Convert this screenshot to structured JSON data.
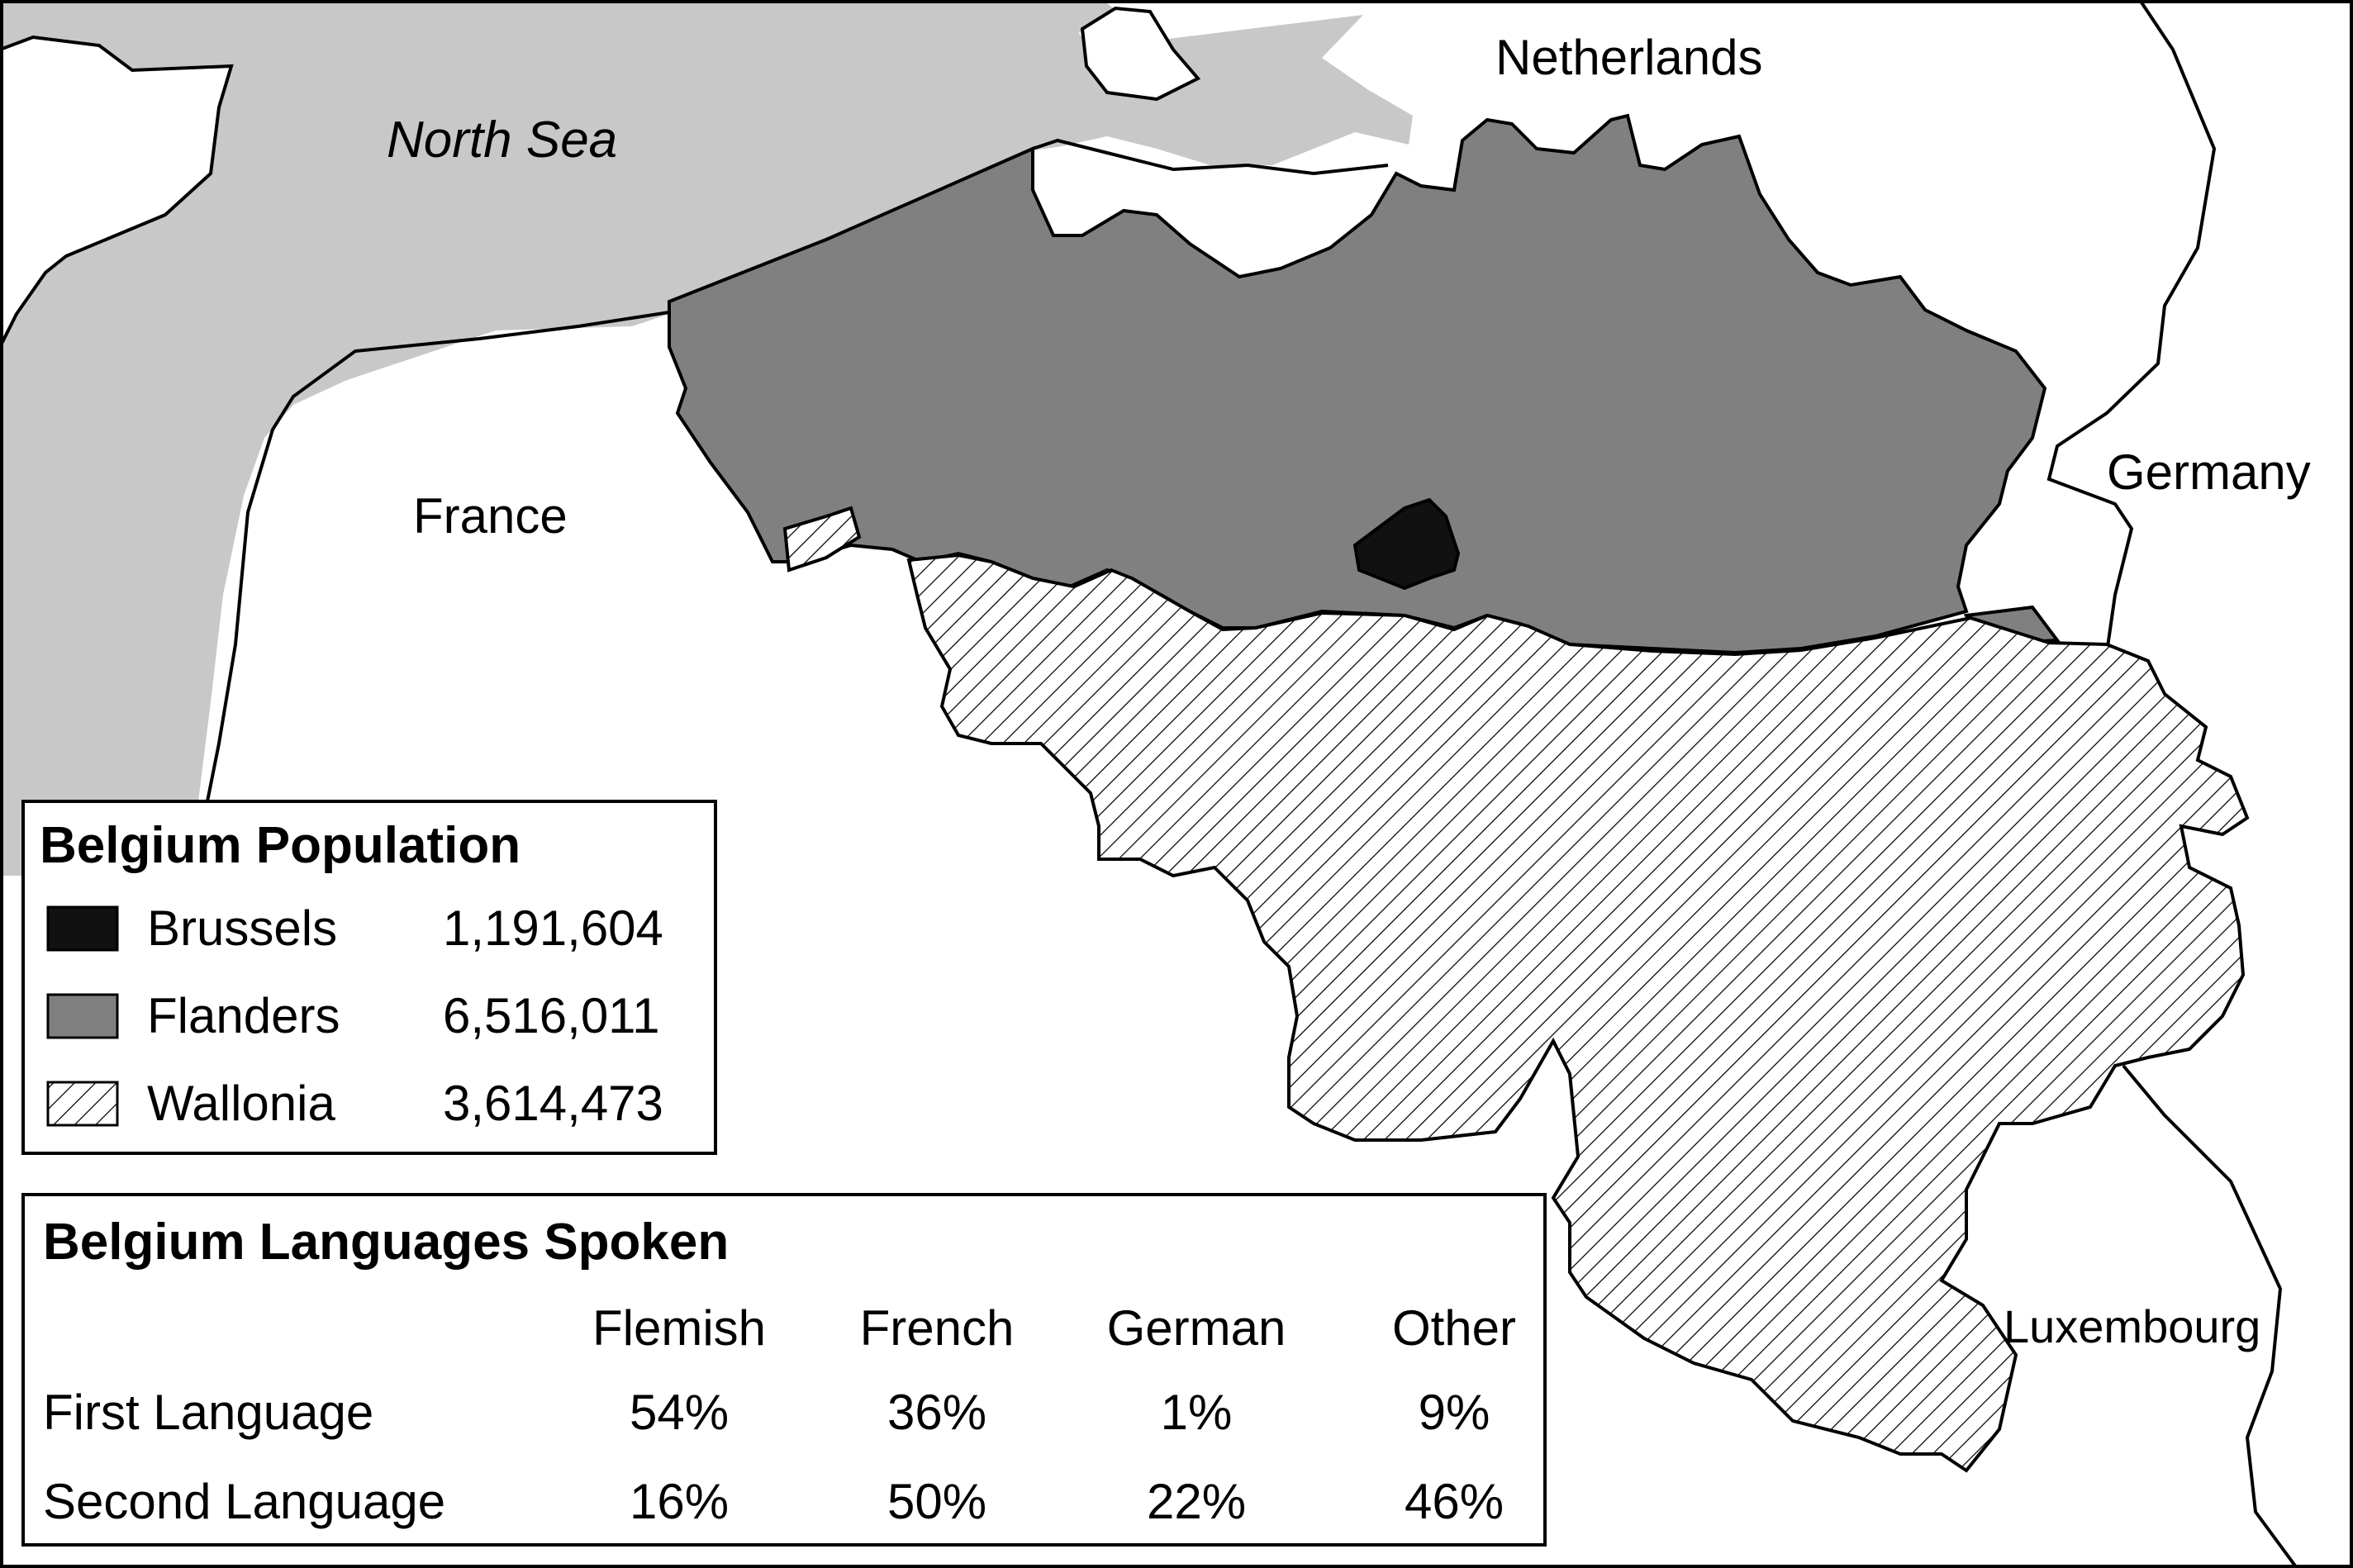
{
  "map_labels": {
    "north_sea": "North Sea",
    "netherlands": "Netherlands",
    "france": "France",
    "germany": "Germany",
    "luxembourg": "Luxembourg"
  },
  "colors": {
    "sea": "#c8c8c8",
    "flanders": "#808080",
    "brussels": "#111111",
    "wallonia_hatch": "#000000",
    "land": "#ffffff",
    "border": "#000000"
  },
  "population": {
    "title": "Belgium Population",
    "rows": [
      {
        "region": "Brussels",
        "value": "1,191,604",
        "swatch": "solid-black"
      },
      {
        "region": "Flanders",
        "value": "6,516,011",
        "swatch": "solid-gray"
      },
      {
        "region": "Wallonia",
        "value": "3,614,473",
        "swatch": "hatched"
      }
    ]
  },
  "languages": {
    "title": "Belgium Languages Spoken",
    "columns": [
      "Flemish",
      "French",
      "German",
      "Other"
    ],
    "rows": [
      {
        "label": "First Language",
        "values": [
          "54%",
          "36%",
          "1%",
          "9%"
        ]
      },
      {
        "label": "Second Language",
        "values": [
          "16%",
          "50%",
          "22%",
          "46%"
        ]
      }
    ]
  }
}
